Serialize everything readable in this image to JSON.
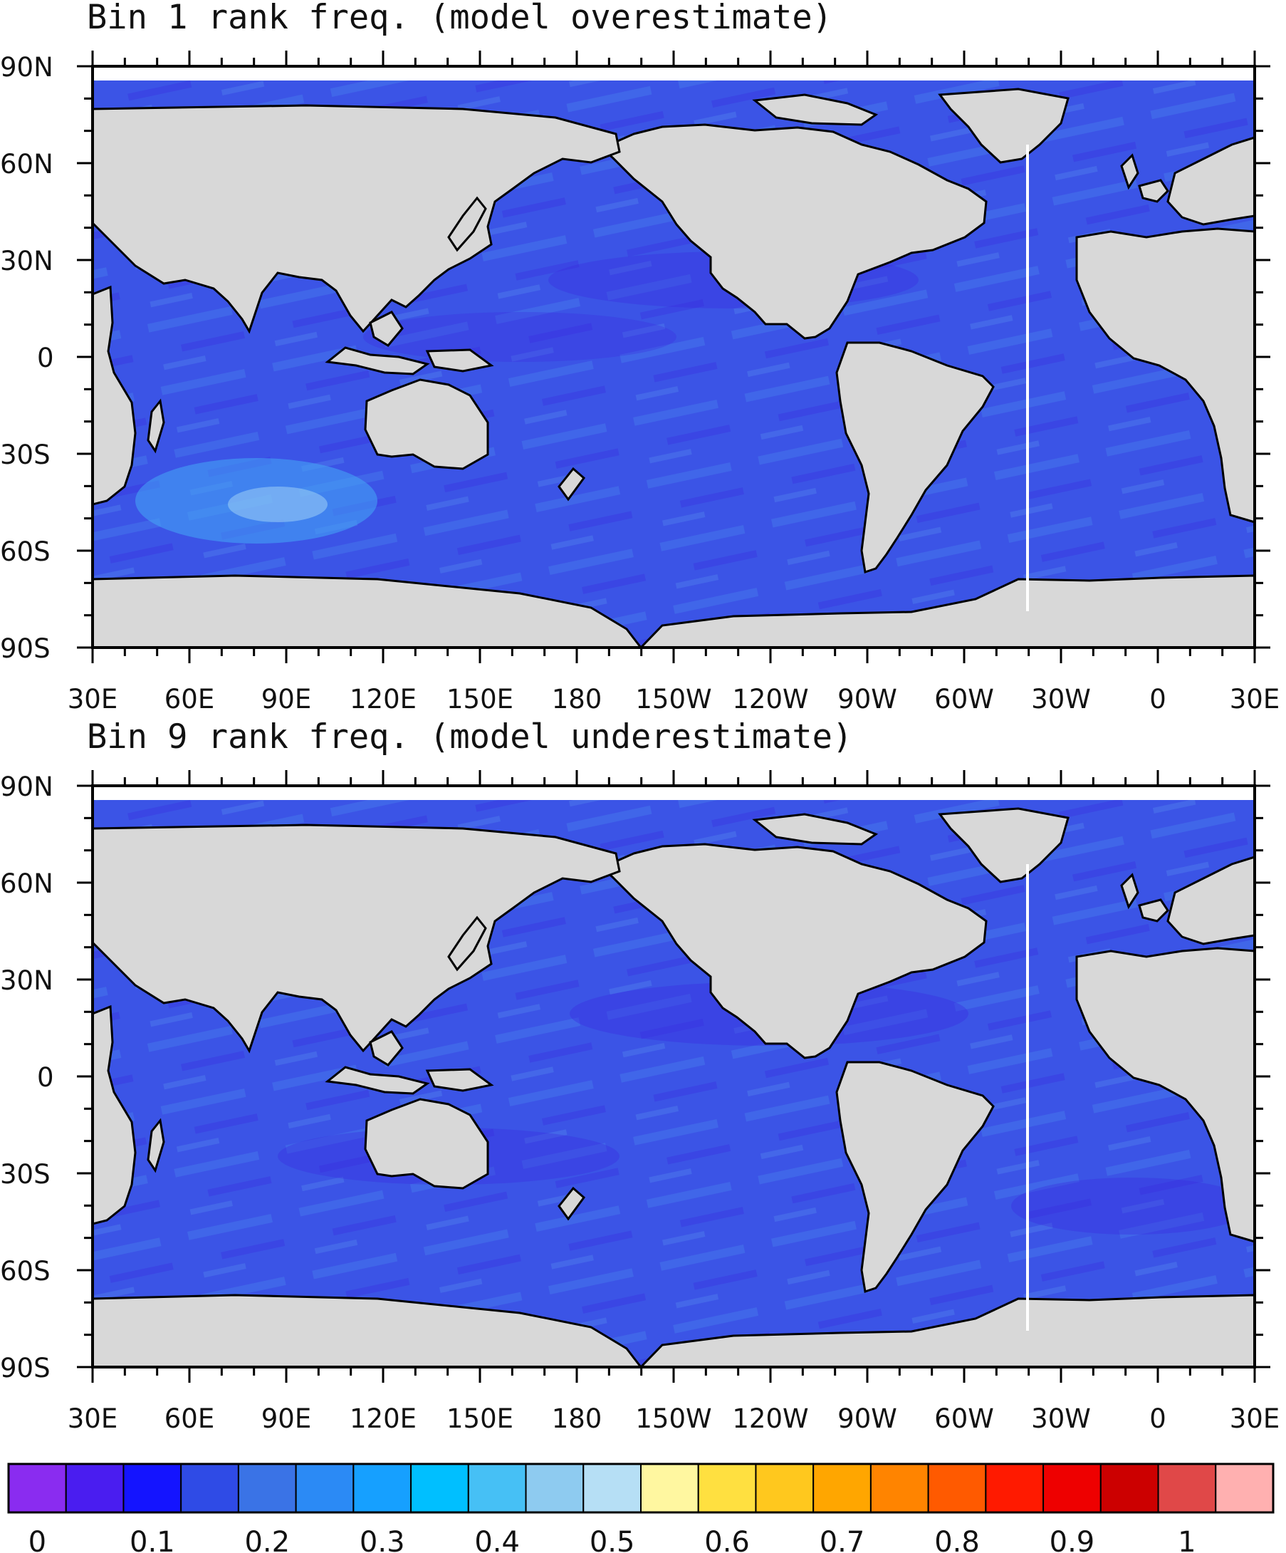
{
  "maps": [
    {
      "title": "Bin 1 rank freq. (model overestimate)",
      "lat_labels": [
        "90N",
        "60N",
        "30N",
        "0",
        "30S",
        "60S",
        "90S"
      ],
      "lon_labels": [
        "30E",
        "60E",
        "90E",
        "120E",
        "150E",
        "180",
        "150W",
        "120W",
        "90W",
        "60W",
        "30W",
        "0",
        "30E"
      ]
    },
    {
      "title": "Bin 9 rank freq. (model underestimate)",
      "lat_labels": [
        "90N",
        "60N",
        "30N",
        "0",
        "30S",
        "60S",
        "90S"
      ],
      "lon_labels": [
        "30E",
        "60E",
        "90E",
        "120E",
        "150E",
        "180",
        "150W",
        "120W",
        "90W",
        "60W",
        "30W",
        "0",
        "30E"
      ]
    }
  ],
  "colorbar": {
    "colors": [
      "#8a2cf0",
      "#4a1df0",
      "#1414ff",
      "#2f4be6",
      "#3a73e6",
      "#2b8af5",
      "#16a0ff",
      "#00bfff",
      "#46c0f5",
      "#8ecbf0",
      "#b6dff5",
      "#fff7a0",
      "#ffe040",
      "#ffc81e",
      "#ffa600",
      "#ff8400",
      "#ff5a00",
      "#ff1a00",
      "#ee0000",
      "#cc0000",
      "#e04848",
      "#ffb0b0"
    ],
    "labels": [
      "0",
      "0.1",
      "0.2",
      "0.3",
      "0.4",
      "0.5",
      "0.6",
      "0.7",
      "0.8",
      "0.9",
      "1"
    ]
  },
  "style": {
    "land": "#d8d8d8",
    "ocean_base": "#3b54e6",
    "ocean_light": "#4a86ee",
    "ocean_dark": "#3a2ce0"
  }
}
